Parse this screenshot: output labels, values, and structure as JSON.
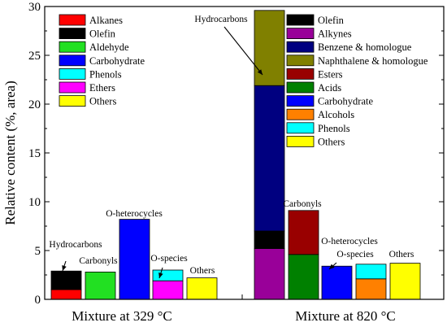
{
  "chart_data": {
    "type": "bar",
    "stacked": true,
    "ylabel": "Relative content (%, area)",
    "ylim": [
      0,
      30
    ],
    "yticks": [
      0,
      5,
      10,
      15,
      20,
      25,
      30
    ],
    "grid": false,
    "groups": [
      {
        "label": "Mixture at 329 °C",
        "bars": [
          {
            "label": "Hydrocarbons",
            "segments": [
              {
                "series": "Alkanes",
                "value": 1.0
              },
              {
                "series": "Olefin",
                "value": 1.9
              }
            ]
          },
          {
            "label": "Carbonyls",
            "segments": [
              {
                "series": "Aldehyde",
                "value": 2.8
              }
            ]
          },
          {
            "label": "O-heterocycles",
            "segments": [
              {
                "series": "Carbohydrate",
                "value": 8.2
              }
            ]
          },
          {
            "label": "O-species",
            "segments": [
              {
                "series": "Ethers",
                "value": 1.9
              },
              {
                "series": "Phenols",
                "value": 1.1
              }
            ]
          },
          {
            "label": "Others",
            "segments": [
              {
                "series": "Others",
                "value": 2.2
              }
            ]
          }
        ],
        "legend": [
          {
            "name": "Alkanes",
            "color": "#ff0000"
          },
          {
            "name": "Olefin",
            "color": "#000000"
          },
          {
            "name": "Aldehyde",
            "color": "#22e022"
          },
          {
            "name": "Carbohydrate",
            "color": "#0000ff"
          },
          {
            "name": "Phenols",
            "color": "#00ffff"
          },
          {
            "name": "Ethers",
            "color": "#ff00ff"
          },
          {
            "name": "Others",
            "color": "#ffff00"
          }
        ]
      },
      {
        "label": "Mixture at 820 °C",
        "bars": [
          {
            "label": "Hydrocarbons",
            "segments": [
              {
                "series": "Alkynes",
                "value": 5.2
              },
              {
                "series": "Olefin",
                "value": 1.8
              },
              {
                "series": "Benzene & homologue",
                "value": 14.9
              },
              {
                "series": "Naphthalene & homologue",
                "value": 7.7
              }
            ]
          },
          {
            "label": "Carbonyls",
            "segments": [
              {
                "series": "Acids",
                "value": 4.6
              },
              {
                "series": "Esters",
                "value": 4.5
              }
            ]
          },
          {
            "label": "O-heterocycles",
            "segments": [
              {
                "series": "Carbohydrate",
                "value": 3.4
              }
            ]
          },
          {
            "label": "O-species",
            "segments": [
              {
                "series": "Alcohols",
                "value": 2.1
              },
              {
                "series": "Phenols",
                "value": 1.5
              }
            ]
          },
          {
            "label": "Others",
            "segments": [
              {
                "series": "Others",
                "value": 3.7
              }
            ]
          }
        ],
        "legend": [
          {
            "name": "Olefin",
            "color": "#000000"
          },
          {
            "name": "Alkynes",
            "color": "#990099"
          },
          {
            "name": "Benzene & homologue",
            "color": "#000080"
          },
          {
            "name": "Naphthalene & homologue",
            "color": "#808000"
          },
          {
            "name": "Esters",
            "color": "#990000"
          },
          {
            "name": "Acids",
            "color": "#008000"
          },
          {
            "name": "Carbohydrate",
            "color": "#0000ff"
          },
          {
            "name": "Alcohols",
            "color": "#ff8000"
          },
          {
            "name": "Phenols",
            "color": "#00ffff"
          },
          {
            "name": "Others",
            "color": "#ffff00"
          }
        ]
      }
    ]
  }
}
